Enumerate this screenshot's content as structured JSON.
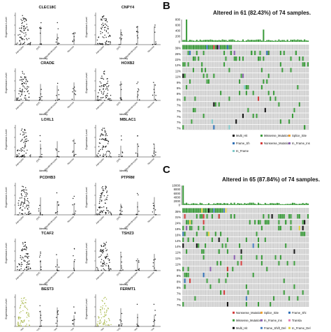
{
  "panelA": {
    "genes": [
      "CLEC18C",
      "CNPY4",
      "CRADE",
      "HOXB2",
      "LOXL1",
      "MBLAC1",
      "PCDHB3",
      "PTPRM",
      "TCAF2",
      "TSHZ3",
      "BEST3",
      "FERMT1"
    ],
    "y_axis_label": "Expression Level",
    "x_axis_label": "Identity",
    "categories": [
      "Astrocytes",
      "OPC",
      "Oligodendrocytes",
      "Neurons"
    ]
  },
  "panelB": {
    "letter": "B",
    "title": "Altered in 61 (82.43%) of 74 samples.",
    "bar_ticks": [
      "800",
      "600",
      "400",
      "200",
      "0"
    ],
    "percents": [
      "39%",
      "26%",
      "22%",
      "12%",
      "11%",
      "11%",
      "9%",
      "9%",
      "8%",
      "8%",
      "7%",
      "7%",
      "7%",
      "7%",
      "7%"
    ],
    "legend": [
      "Multi_Hit",
      "Missense_Mutation",
      "Splice_Site",
      "Frame_Sh",
      "Nonsense_Mutation",
      "In_Frame_Ins",
      "In_Frame"
    ],
    "legend_colors": {
      "Multi_Hit": "#111111",
      "Missense_Mutation": "#3a9a3a",
      "Splice_Site": "#f0a030",
      "Frame_Sh": "#2f6fb5",
      "Nonsense_Mutation": "#d33a3a",
      "In_Frame_Ins": "#8a5fb0",
      "In_Frame": "#7fc9c9"
    }
  },
  "panelC": {
    "letter": "C",
    "title": "Altered in 65 (87.84%) of 74 samples.",
    "bar_ticks": [
      "10000",
      "8000",
      "6000",
      "4000",
      "2000",
      "0"
    ],
    "percents": [
      "35%",
      "31%",
      "24%",
      "19%",
      "16%",
      "14%",
      "14%",
      "11%",
      "11%",
      "11%",
      "9%",
      "8%",
      "8%",
      "8%",
      "7%",
      "7%",
      "7%"
    ],
    "legend": [
      "Nonsense_Mutation",
      "Splice_Site",
      "Frame_Shi",
      "Missense_Mutation",
      "In_Frame_Ins",
      "Transla",
      "Multi_Hit",
      "Frame_Shift_Del",
      "In_Frame_Del"
    ],
    "legend_colors": {
      "Nonsense_Mutation": "#d33a3a",
      "Splice_Site": "#f0a030",
      "Frame_Shi": "#2f6fb5",
      "Missense_Mutation": "#3a9a3a",
      "In_Frame_Ins": "#8a5fb0",
      "Transla": "#e27bb0",
      "Multi_Hit": "#111111",
      "Frame_Shift_Del": "#4a7fc1",
      "In_Frame_Del": "#e0d040"
    }
  }
}
